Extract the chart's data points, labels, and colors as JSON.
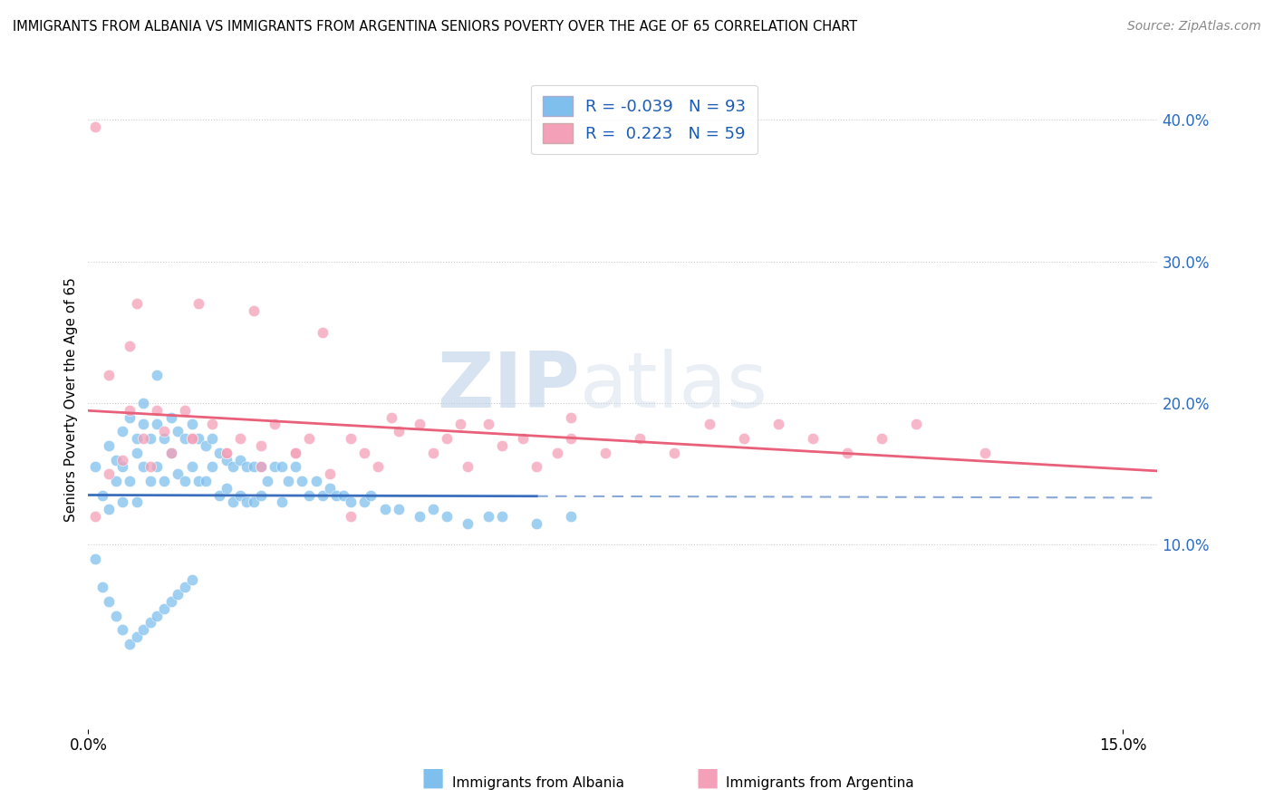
{
  "title": "IMMIGRANTS FROM ALBANIA VS IMMIGRANTS FROM ARGENTINA SENIORS POVERTY OVER THE AGE OF 65 CORRELATION CHART",
  "source": "Source: ZipAtlas.com",
  "ylabel": "Seniors Poverty Over the Age of 65",
  "legend_label_1": "Immigrants from Albania",
  "legend_label_2": "Immigrants from Argentina",
  "r1": -0.039,
  "n1": 93,
  "r2": 0.223,
  "n2": 59,
  "color1": "#7fbfed",
  "color2": "#f4a0b8",
  "line1_color": "#3b6fbe",
  "line2_color": "#e8607a",
  "watermark_zip": "ZIP",
  "watermark_atlas": "atlas",
  "xlim": [
    0.0,
    0.155
  ],
  "ylim": [
    -0.03,
    0.435
  ],
  "x_ticks": [
    0.0,
    0.15
  ],
  "x_tick_labels": [
    "0.0%",
    "15.0%"
  ],
  "y_ticks_right": [
    0.1,
    0.2,
    0.3,
    0.4
  ],
  "y_tick_labels_right": [
    "10.0%",
    "20.0%",
    "30.0%",
    "40.0%"
  ],
  "albania_x": [
    0.001,
    0.002,
    0.003,
    0.003,
    0.004,
    0.004,
    0.005,
    0.005,
    0.005,
    0.006,
    0.006,
    0.007,
    0.007,
    0.007,
    0.008,
    0.008,
    0.008,
    0.009,
    0.009,
    0.01,
    0.01,
    0.01,
    0.011,
    0.011,
    0.012,
    0.012,
    0.013,
    0.013,
    0.014,
    0.014,
    0.015,
    0.015,
    0.016,
    0.016,
    0.017,
    0.017,
    0.018,
    0.018,
    0.019,
    0.019,
    0.02,
    0.02,
    0.021,
    0.021,
    0.022,
    0.022,
    0.023,
    0.023,
    0.024,
    0.024,
    0.025,
    0.025,
    0.026,
    0.027,
    0.028,
    0.028,
    0.029,
    0.03,
    0.031,
    0.032,
    0.033,
    0.034,
    0.035,
    0.036,
    0.037,
    0.038,
    0.04,
    0.041,
    0.043,
    0.045,
    0.048,
    0.05,
    0.052,
    0.055,
    0.058,
    0.06,
    0.065,
    0.07,
    0.001,
    0.002,
    0.003,
    0.004,
    0.005,
    0.006,
    0.007,
    0.008,
    0.009,
    0.01,
    0.011,
    0.012,
    0.013,
    0.014,
    0.015
  ],
  "albania_y": [
    0.155,
    0.135,
    0.17,
    0.125,
    0.145,
    0.16,
    0.18,
    0.155,
    0.13,
    0.19,
    0.145,
    0.175,
    0.165,
    0.13,
    0.2,
    0.185,
    0.155,
    0.175,
    0.145,
    0.22,
    0.185,
    0.155,
    0.175,
    0.145,
    0.19,
    0.165,
    0.18,
    0.15,
    0.175,
    0.145,
    0.185,
    0.155,
    0.175,
    0.145,
    0.17,
    0.145,
    0.175,
    0.155,
    0.165,
    0.135,
    0.16,
    0.14,
    0.155,
    0.13,
    0.16,
    0.135,
    0.155,
    0.13,
    0.155,
    0.13,
    0.155,
    0.135,
    0.145,
    0.155,
    0.155,
    0.13,
    0.145,
    0.155,
    0.145,
    0.135,
    0.145,
    0.135,
    0.14,
    0.135,
    0.135,
    0.13,
    0.13,
    0.135,
    0.125,
    0.125,
    0.12,
    0.125,
    0.12,
    0.115,
    0.12,
    0.12,
    0.115,
    0.12,
    0.09,
    0.07,
    0.06,
    0.05,
    0.04,
    0.03,
    0.035,
    0.04,
    0.045,
    0.05,
    0.055,
    0.06,
    0.065,
    0.07,
    0.075
  ],
  "argentina_x": [
    0.001,
    0.003,
    0.005,
    0.006,
    0.008,
    0.009,
    0.011,
    0.012,
    0.014,
    0.015,
    0.018,
    0.02,
    0.022,
    0.025,
    0.027,
    0.03,
    0.032,
    0.035,
    0.038,
    0.04,
    0.042,
    0.045,
    0.048,
    0.05,
    0.052,
    0.055,
    0.058,
    0.06,
    0.063,
    0.065,
    0.068,
    0.07,
    0.075,
    0.08,
    0.085,
    0.09,
    0.095,
    0.1,
    0.105,
    0.11,
    0.115,
    0.12,
    0.13,
    0.007,
    0.016,
    0.024,
    0.034,
    0.044,
    0.054,
    0.07,
    0.001,
    0.003,
    0.006,
    0.01,
    0.015,
    0.02,
    0.025,
    0.03,
    0.038
  ],
  "argentina_y": [
    0.12,
    0.15,
    0.16,
    0.195,
    0.175,
    0.155,
    0.18,
    0.165,
    0.195,
    0.175,
    0.185,
    0.165,
    0.175,
    0.155,
    0.185,
    0.165,
    0.175,
    0.15,
    0.175,
    0.165,
    0.155,
    0.18,
    0.185,
    0.165,
    0.175,
    0.155,
    0.185,
    0.17,
    0.175,
    0.155,
    0.165,
    0.175,
    0.165,
    0.175,
    0.165,
    0.185,
    0.175,
    0.185,
    0.175,
    0.165,
    0.175,
    0.185,
    0.165,
    0.27,
    0.27,
    0.265,
    0.25,
    0.19,
    0.185,
    0.19,
    0.395,
    0.22,
    0.24,
    0.195,
    0.175,
    0.165,
    0.17,
    0.165,
    0.12
  ]
}
